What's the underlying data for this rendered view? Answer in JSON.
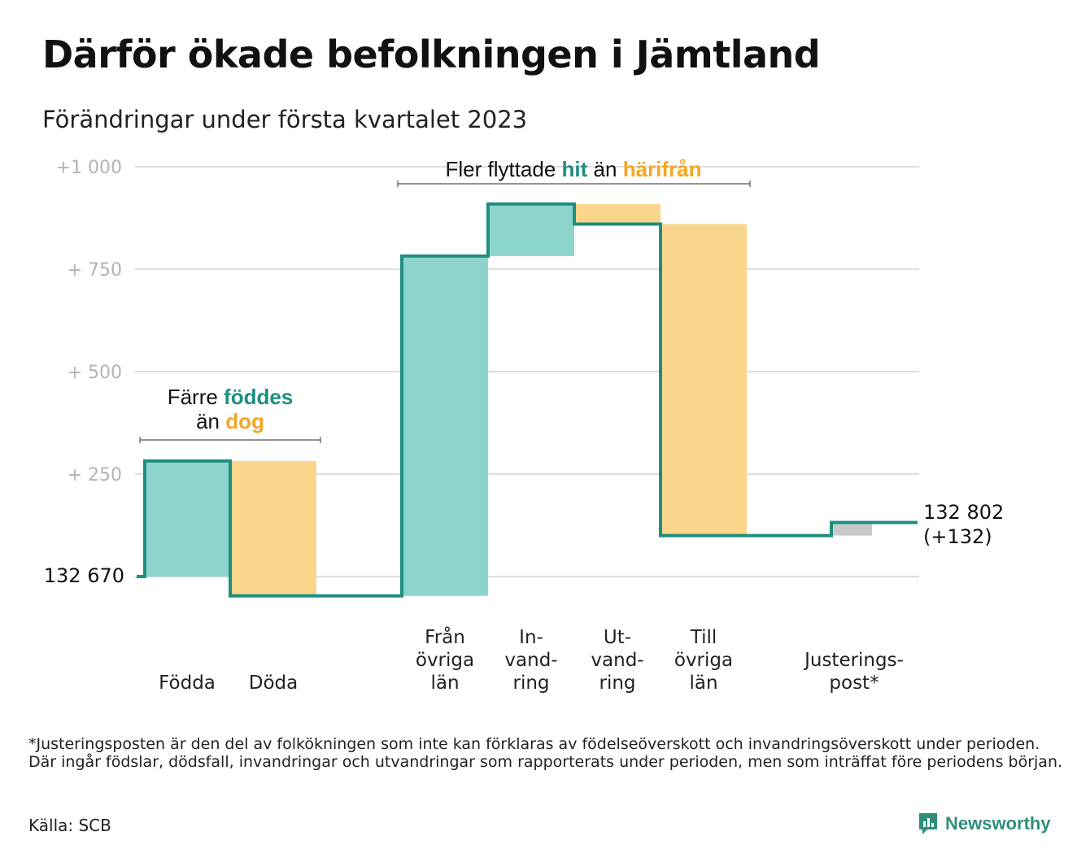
{
  "title": "Därför ökade befolkningen i Jämtland",
  "subtitle": "Förändringar under första kvartalet 2023",
  "colors": {
    "increase_fill": "#8dd5cc",
    "decrease_fill": "#fad58c",
    "adjustment_fill": "#c8c8c8",
    "step_line": "#1e8f80",
    "teal_text": "#1e8f80",
    "orange_text": "#f5a623",
    "grid": "#dddddd"
  },
  "annotations": {
    "births": {
      "line1_prefix": "Färre ",
      "line1_highlight": "föddes",
      "line2_prefix": "än ",
      "line2_highlight": "dog"
    },
    "migration": {
      "prefix": "Fler flyttade ",
      "highlight1": "hit",
      "middle": " än ",
      "highlight2": "härifrån"
    }
  },
  "chart_data": {
    "type": "waterfall",
    "title": "Därför ökade befolkningen i Jämtland",
    "subtitle": "Förändringar under första kvartalet 2023",
    "start_value": 132670,
    "start_label": "132 670",
    "end_value": 132802,
    "end_label": "132 802",
    "end_change_label": "(+132)",
    "y_range_change": [
      -45,
      1000
    ],
    "y_ticks": [
      {
        "value": 250,
        "label": "+ 250"
      },
      {
        "value": 500,
        "label": "+ 500"
      },
      {
        "value": 750,
        "label": "+ 750"
      },
      {
        "value": 1000,
        "label": "+1 000"
      }
    ],
    "grid": true,
    "categories": [
      {
        "label_lines": [
          "Födda"
        ],
        "change": 282,
        "kind": "increase"
      },
      {
        "label_lines": [
          "Döda"
        ],
        "change": -329,
        "kind": "decrease"
      },
      {
        "label_lines": [
          "Från",
          "övriga",
          "län"
        ],
        "change": 829,
        "kind": "increase"
      },
      {
        "label_lines": [
          "In-",
          "vand-",
          "ring"
        ],
        "change": 127,
        "kind": "increase"
      },
      {
        "label_lines": [
          "Ut-",
          "vand-",
          "ring"
        ],
        "change": -49,
        "kind": "decrease"
      },
      {
        "label_lines": [
          "Till",
          "övriga",
          "län"
        ],
        "change": -760,
        "kind": "decrease"
      },
      {
        "label_lines": [
          "Justerings-",
          "post*"
        ],
        "change": 32,
        "kind": "adjustment"
      }
    ]
  },
  "footnote": "*Justeringsposten är den del av folkökningen som inte kan förklaras av födelseöverskott och invandringsöverskott under perioden. Där ingår födslar, dödsfall, invandringar och utvandringar som rapporterats under perioden, men som inträffat före periodens början.",
  "source": "Källa: SCB",
  "brand": "Newsworthy",
  "logo_icon": "newsworthy-logo-icon"
}
